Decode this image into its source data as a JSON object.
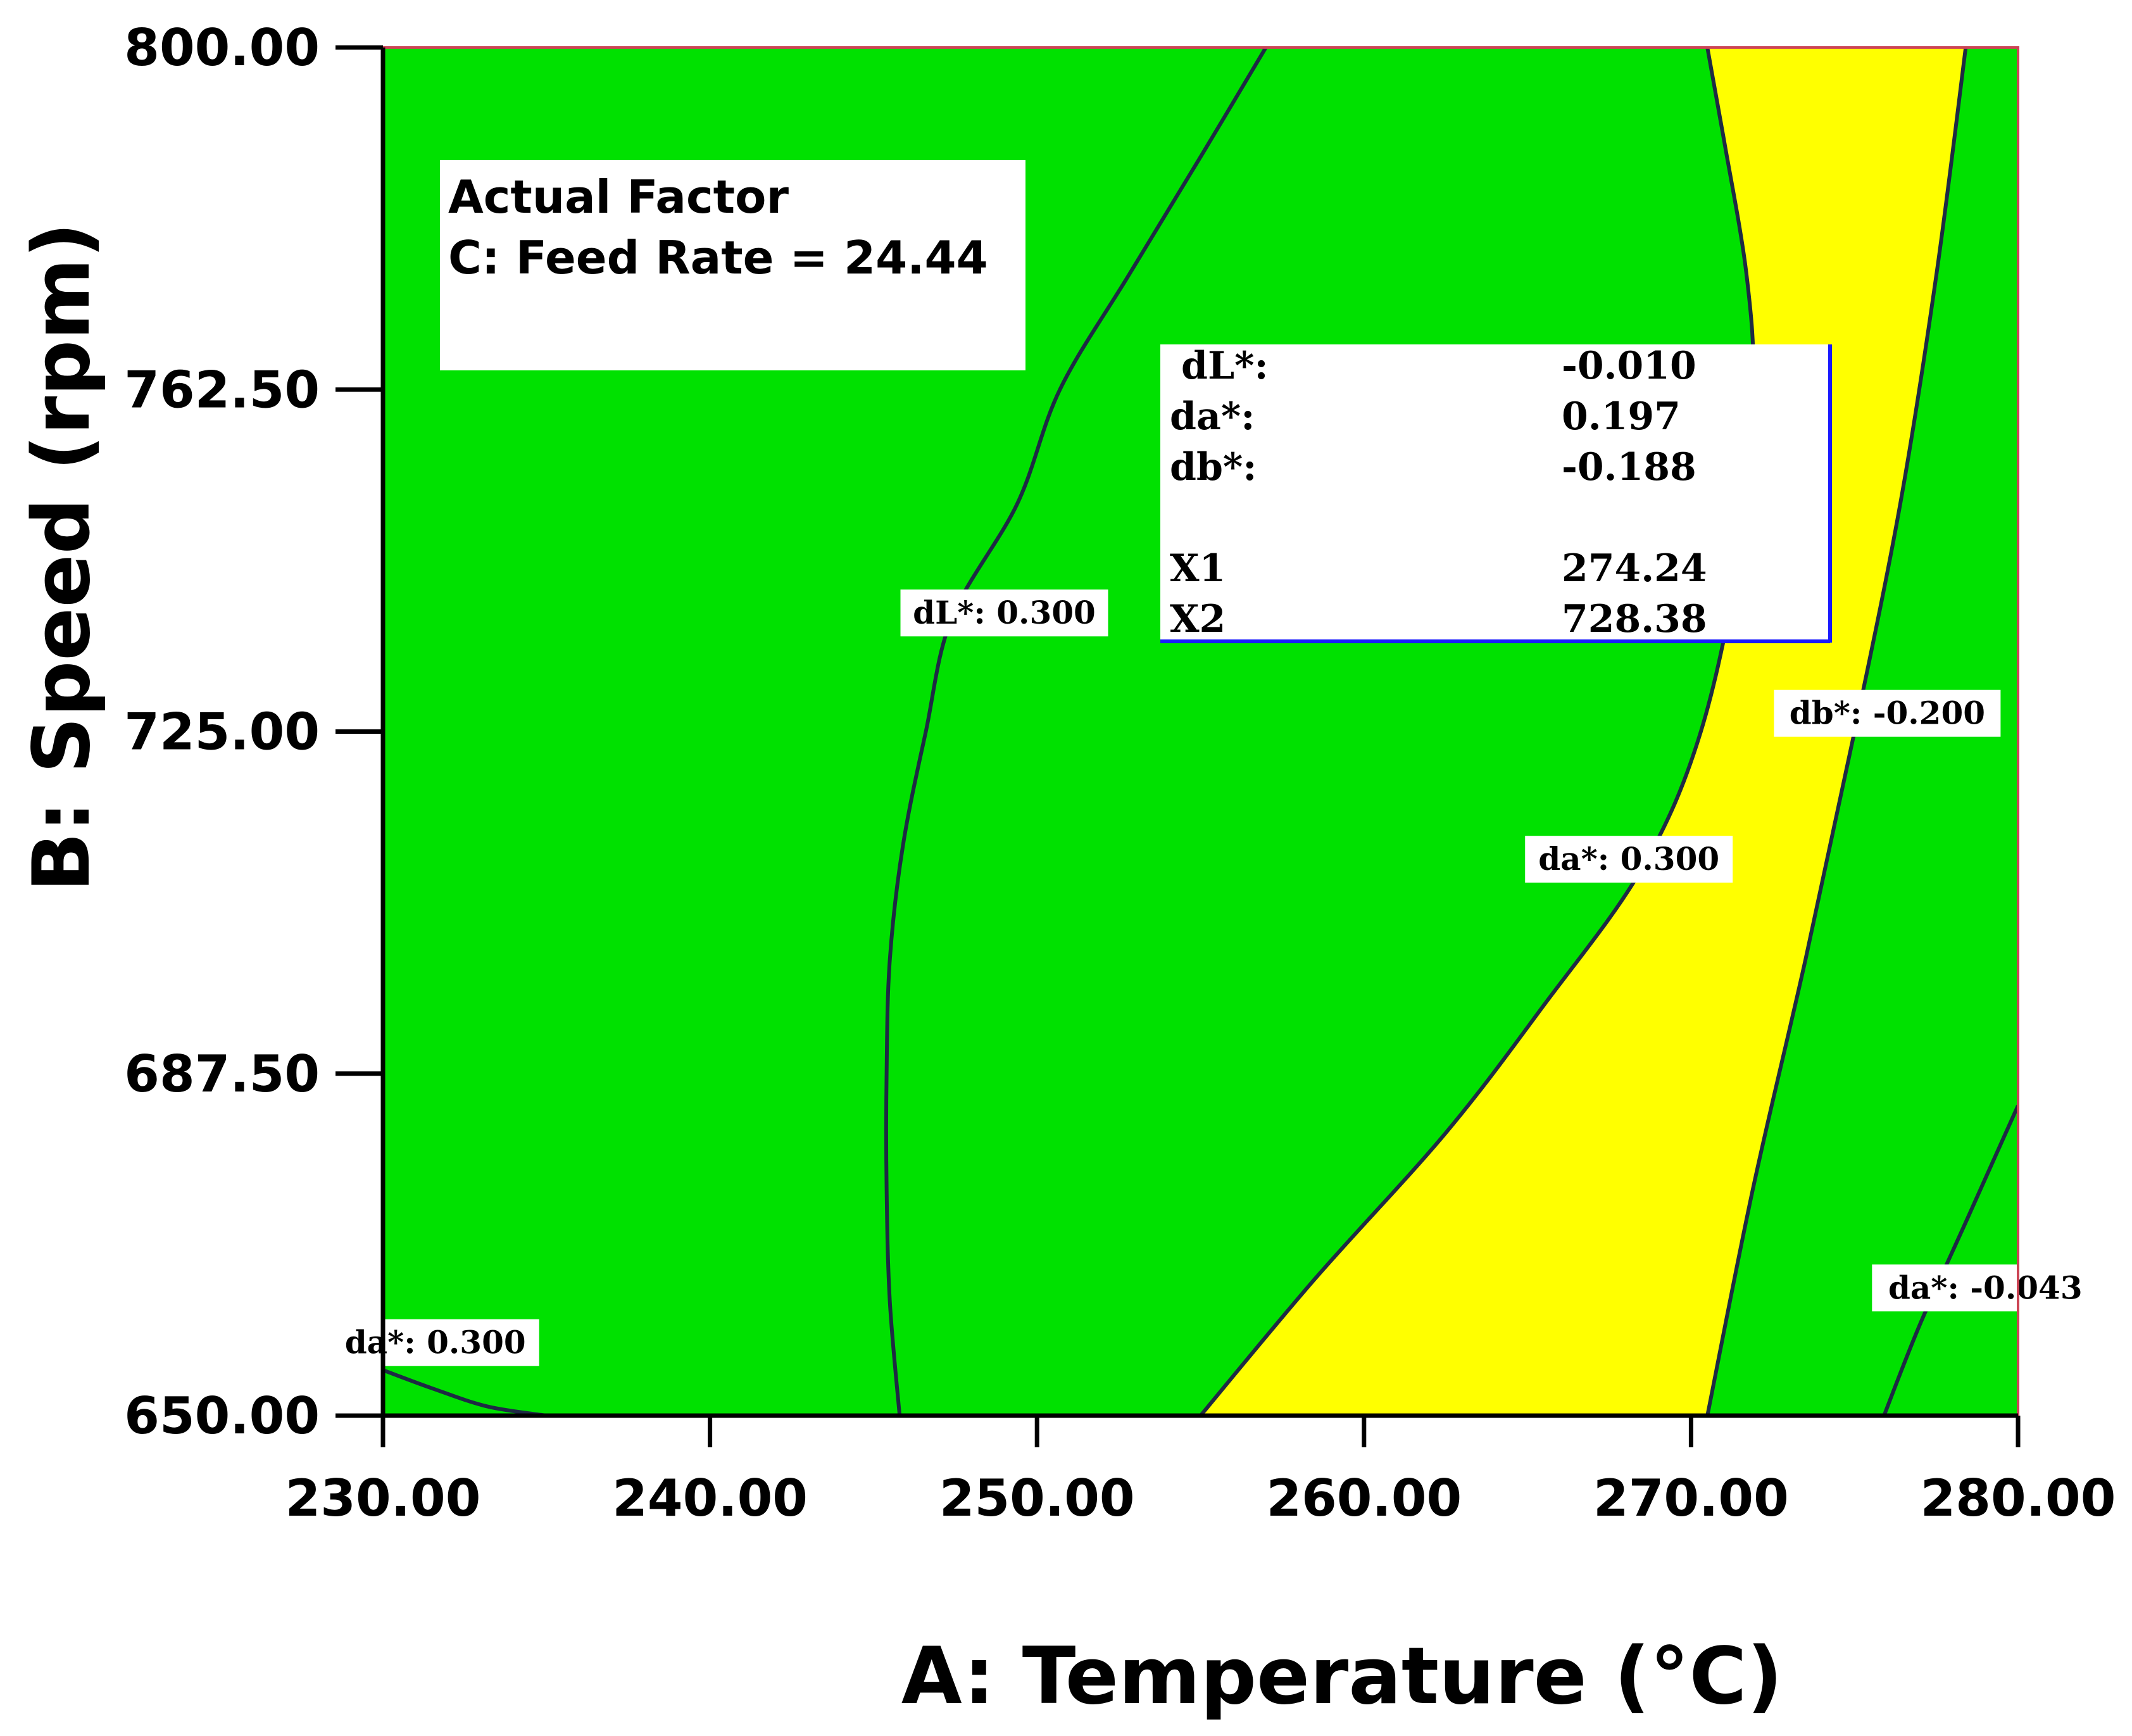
{
  "chart_data": {
    "type": "contour",
    "subtype": "overlay plot",
    "x_axis": {
      "title": "A: Temperature (°C)",
      "range": [
        230,
        280
      ],
      "ticks": [
        230,
        240,
        250,
        260,
        270,
        280
      ],
      "tick_labels": [
        "230.00",
        "240.00",
        "250.00",
        "260.00",
        "270.00",
        "280.00"
      ]
    },
    "y_axis": {
      "title": "B: Speed (rpm)",
      "range": [
        650,
        800
      ],
      "ticks": [
        650,
        687.5,
        725,
        762.5,
        800
      ],
      "tick_labels": [
        "650.00",
        "687.50",
        "725.00",
        "762.50",
        "800.00"
      ]
    },
    "actual_factor": {
      "heading": "Actual Factor",
      "text": "C: Feed Rate = 24.44"
    },
    "colors": {
      "background_region": "#00e100",
      "feasible_region": "#ffff00",
      "contour_line": "#1e2a44",
      "readout_border": "#1a1aff",
      "axis_line": "#000000"
    },
    "feasible_region": {
      "description": "yellow sweet-spot region",
      "left_boundary": [
        [
          270.5,
          800
        ],
        [
          271.0,
          790
        ],
        [
          271.7,
          775
        ],
        [
          271.9,
          762.5
        ],
        [
          271.5,
          745
        ],
        [
          270.3,
          725
        ],
        [
          268.5,
          710
        ],
        [
          265.5,
          695
        ],
        [
          262.5,
          681
        ],
        [
          258.5,
          665
        ],
        [
          255.0,
          650
        ]
      ],
      "right_boundary": [
        [
          270.5,
          650
        ],
        [
          271.9,
          675
        ],
        [
          273.5,
          700
        ],
        [
          275.0,
          725
        ],
        [
          276.4,
          750
        ],
        [
          277.5,
          775
        ],
        [
          278.4,
          800
        ]
      ]
    },
    "contours": [
      {
        "label": "dL*: 0.300",
        "response": "dL*",
        "value": 0.3,
        "points": [
          [
            257.0,
            800
          ],
          [
            255.0,
            788
          ],
          [
            252.8,
            775
          ],
          [
            250.7,
            762.5
          ],
          [
            249.4,
            750
          ],
          [
            247.4,
            737.5
          ],
          [
            246.6,
            725
          ],
          [
            245.9,
            712.5
          ],
          [
            245.5,
            700
          ],
          [
            245.4,
            687.5
          ],
          [
            245.4,
            675
          ],
          [
            245.5,
            662.5
          ],
          [
            245.8,
            650
          ]
        ],
        "label_at": [
          249.0,
          738
        ]
      },
      {
        "label": "da*: 0.300",
        "response": "da*",
        "value": 0.3,
        "points": [
          [
            270.5,
            800
          ],
          [
            271.0,
            790
          ],
          [
            271.7,
            775
          ],
          [
            271.9,
            762.5
          ],
          [
            271.5,
            745
          ],
          [
            270.3,
            725
          ],
          [
            268.5,
            710
          ],
          [
            265.5,
            695
          ],
          [
            262.5,
            681
          ],
          [
            258.5,
            665
          ],
          [
            255.0,
            650
          ]
        ],
        "label_at": [
          268.1,
          711
        ]
      },
      {
        "label": "db*: -0.200",
        "response": "db*",
        "value": -0.2,
        "points": [
          [
            270.5,
            650
          ],
          [
            271.9,
            675
          ],
          [
            273.5,
            700
          ],
          [
            275.0,
            725
          ],
          [
            276.4,
            750
          ],
          [
            277.5,
            775
          ],
          [
            278.4,
            800
          ]
        ],
        "label_at": [
          276.0,
          727
        ]
      },
      {
        "label": "da*: -0.043",
        "response": "da*",
        "value": -0.043,
        "points": [
          [
            275.9,
            650
          ],
          [
            277.0,
            660
          ],
          [
            278.5,
            672
          ],
          [
            280.0,
            684
          ]
        ],
        "label_at": [
          279.0,
          664
        ]
      },
      {
        "label": "da*: 0.300",
        "response": "da*",
        "value": 0.3,
        "points": [
          [
            230.0,
            655
          ],
          [
            231.5,
            653
          ],
          [
            233.2,
            651
          ],
          [
            235.0,
            650
          ]
        ],
        "label_at": [
          231.6,
          658
        ]
      }
    ],
    "readout": {
      "rows": [
        {
          "name": "dL*:",
          "value": "-0.010"
        },
        {
          "name": "da*:",
          "value": "0.197"
        },
        {
          "name": "db*:",
          "value": "-0.188"
        },
        {
          "name": "X1",
          "value": "274.24"
        },
        {
          "name": "X2",
          "value": "728.38"
        }
      ]
    }
  }
}
